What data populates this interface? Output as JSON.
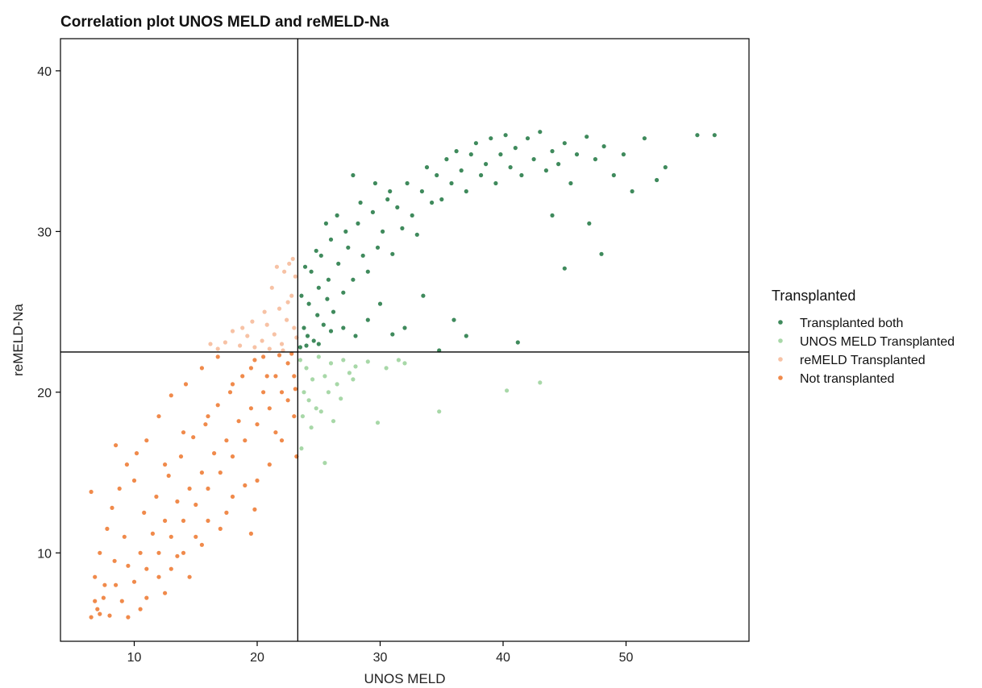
{
  "chart_data": {
    "type": "scatter",
    "title": "Correlation plot UNOS MELD and reMELD-Na",
    "xlabel": "UNOS MELD",
    "ylabel": "reMELD-Na",
    "xlim": [
      4,
      60
    ],
    "ylim": [
      4.5,
      42
    ],
    "x_ticks": [
      10,
      20,
      30,
      40,
      50
    ],
    "y_ticks": [
      10,
      20,
      30,
      40
    ],
    "grid": false,
    "cutoffs": {
      "x": 23.3,
      "y": 22.5
    },
    "legend": {
      "title": "Transplanted",
      "placement": "right",
      "entries": [
        {
          "label": "Transplanted both",
          "color": "#3f8a5c"
        },
        {
          "label": "UNOS MELD Transplanted",
          "color": "#a8d8a8"
        },
        {
          "label": "reMELD Transplanted",
          "color": "#f7c2a5"
        },
        {
          "label": "Not transplanted",
          "color": "#f08a4b"
        }
      ]
    },
    "series": [
      {
        "name": "Transplanted both",
        "color": "#3f8a5c",
        "points": [
          [
            23.5,
            22.8
          ],
          [
            23.8,
            24.0
          ],
          [
            24.2,
            25.5
          ],
          [
            24.6,
            23.2
          ],
          [
            25.0,
            26.5
          ],
          [
            25.4,
            24.2
          ],
          [
            25.8,
            27.0
          ],
          [
            26.2,
            25.0
          ],
          [
            26.6,
            28.0
          ],
          [
            27.0,
            26.2
          ],
          [
            27.4,
            29.0
          ],
          [
            27.8,
            27.0
          ],
          [
            28.2,
            30.5
          ],
          [
            28.6,
            28.5
          ],
          [
            29.0,
            27.5
          ],
          [
            29.4,
            31.2
          ],
          [
            29.8,
            29.0
          ],
          [
            30.2,
            30.0
          ],
          [
            30.6,
            32.0
          ],
          [
            31.0,
            28.6
          ],
          [
            31.4,
            31.5
          ],
          [
            31.8,
            30.2
          ],
          [
            32.2,
            33.0
          ],
          [
            32.6,
            31.0
          ],
          [
            33.0,
            29.8
          ],
          [
            33.4,
            32.5
          ],
          [
            33.8,
            34.0
          ],
          [
            34.2,
            31.8
          ],
          [
            34.6,
            33.5
          ],
          [
            35.0,
            32.0
          ],
          [
            35.4,
            34.5
          ],
          [
            35.8,
            33.0
          ],
          [
            36.2,
            35.0
          ],
          [
            36.6,
            33.8
          ],
          [
            37.0,
            32.5
          ],
          [
            37.4,
            34.8
          ],
          [
            37.8,
            35.5
          ],
          [
            38.2,
            33.5
          ],
          [
            38.6,
            34.2
          ],
          [
            39.0,
            35.8
          ],
          [
            39.4,
            33.0
          ],
          [
            39.8,
            34.8
          ],
          [
            40.2,
            36.0
          ],
          [
            40.6,
            34.0
          ],
          [
            41.0,
            35.2
          ],
          [
            41.5,
            33.5
          ],
          [
            42.0,
            35.8
          ],
          [
            42.5,
            34.5
          ],
          [
            43.0,
            36.2
          ],
          [
            43.5,
            33.8
          ],
          [
            44.0,
            35.0
          ],
          [
            44.5,
            34.2
          ],
          [
            45.0,
            35.5
          ],
          [
            45.5,
            33.0
          ],
          [
            46.0,
            34.8
          ],
          [
            46.8,
            35.9
          ],
          [
            47.5,
            34.5
          ],
          [
            48.2,
            35.3
          ],
          [
            49.0,
            33.5
          ],
          [
            49.8,
            34.8
          ],
          [
            50.5,
            32.5
          ],
          [
            51.5,
            35.8
          ],
          [
            52.5,
            33.2
          ],
          [
            53.2,
            34.0
          ],
          [
            55.8,
            36.0
          ],
          [
            57.2,
            36.0
          ],
          [
            45.0,
            27.7
          ],
          [
            47.0,
            30.5
          ],
          [
            48.0,
            28.6
          ],
          [
            44.0,
            31.0
          ],
          [
            41.2,
            23.1
          ],
          [
            37.0,
            23.5
          ],
          [
            36.0,
            24.5
          ],
          [
            34.8,
            22.6
          ],
          [
            33.5,
            26.0
          ],
          [
            32.0,
            24.0
          ],
          [
            31.0,
            23.6
          ],
          [
            30.0,
            25.5
          ],
          [
            29.0,
            24.5
          ],
          [
            28.0,
            23.5
          ],
          [
            27.0,
            24.0
          ],
          [
            26.0,
            23.8
          ],
          [
            25.0,
            23.0
          ],
          [
            24.0,
            22.9
          ],
          [
            23.6,
            26.0
          ],
          [
            24.4,
            27.5
          ],
          [
            25.2,
            28.5
          ],
          [
            26.0,
            29.5
          ],
          [
            27.2,
            30.0
          ],
          [
            28.4,
            31.8
          ],
          [
            29.6,
            33.0
          ],
          [
            30.8,
            32.5
          ],
          [
            26.5,
            31.0
          ],
          [
            27.8,
            33.5
          ],
          [
            25.6,
            30.5
          ],
          [
            24.8,
            28.8
          ],
          [
            23.9,
            27.8
          ],
          [
            24.1,
            23.5
          ],
          [
            24.9,
            24.8
          ],
          [
            25.7,
            25.8
          ]
        ]
      },
      {
        "name": "UNOS MELD Transplanted",
        "color": "#a8d8a8",
        "points": [
          [
            23.5,
            22.0
          ],
          [
            24.0,
            21.5
          ],
          [
            24.5,
            20.8
          ],
          [
            25.0,
            22.2
          ],
          [
            25.5,
            21.0
          ],
          [
            26.0,
            21.8
          ],
          [
            26.5,
            20.5
          ],
          [
            27.0,
            22.0
          ],
          [
            27.5,
            21.2
          ],
          [
            28.0,
            21.6
          ],
          [
            23.8,
            20.0
          ],
          [
            24.2,
            19.5
          ],
          [
            24.8,
            19.0
          ],
          [
            25.2,
            18.8
          ],
          [
            26.2,
            18.2
          ],
          [
            23.6,
            16.5
          ],
          [
            25.5,
            15.6
          ],
          [
            29.8,
            18.1
          ],
          [
            32.0,
            21.8
          ],
          [
            34.8,
            18.8
          ],
          [
            40.3,
            20.1
          ],
          [
            43.0,
            20.6
          ],
          [
            30.5,
            21.5
          ],
          [
            31.5,
            22.0
          ],
          [
            29.0,
            21.9
          ],
          [
            26.8,
            19.6
          ],
          [
            24.4,
            17.8
          ],
          [
            23.7,
            18.5
          ],
          [
            25.8,
            20.0
          ],
          [
            27.8,
            20.8
          ]
        ]
      },
      {
        "name": "reMELD Transplanted",
        "color": "#f7c2a5",
        "points": [
          [
            22.0,
            23.0
          ],
          [
            22.4,
            24.5
          ],
          [
            22.8,
            26.0
          ],
          [
            21.8,
            25.2
          ],
          [
            22.2,
            27.5
          ],
          [
            22.6,
            28.0
          ],
          [
            23.0,
            24.0
          ],
          [
            21.4,
            23.6
          ],
          [
            20.8,
            24.2
          ],
          [
            21.2,
            26.5
          ],
          [
            20.4,
            23.2
          ],
          [
            19.8,
            22.8
          ],
          [
            19.2,
            23.5
          ],
          [
            18.6,
            22.9
          ],
          [
            18.0,
            23.8
          ],
          [
            17.4,
            23.1
          ],
          [
            16.8,
            22.7
          ],
          [
            16.2,
            23.0
          ],
          [
            22.9,
            28.3
          ],
          [
            23.1,
            27.2
          ],
          [
            21.6,
            27.8
          ],
          [
            22.5,
            25.6
          ],
          [
            20.6,
            25.0
          ],
          [
            19.6,
            24.4
          ],
          [
            18.8,
            24.0
          ],
          [
            22.1,
            22.6
          ],
          [
            21.0,
            22.7
          ],
          [
            23.2,
            23.4
          ]
        ]
      },
      {
        "name": "Not transplanted",
        "color": "#f08a4b",
        "points": [
          [
            6.5,
            6.0
          ],
          [
            7.0,
            6.5
          ],
          [
            7.5,
            7.2
          ],
          [
            8.0,
            6.1
          ],
          [
            8.5,
            8.0
          ],
          [
            9.0,
            7.0
          ],
          [
            9.5,
            9.2
          ],
          [
            10.0,
            8.2
          ],
          [
            10.5,
            10.0
          ],
          [
            11.0,
            9.0
          ],
          [
            11.5,
            11.2
          ],
          [
            12.0,
            10.0
          ],
          [
            12.5,
            12.0
          ],
          [
            13.0,
            11.0
          ],
          [
            13.5,
            13.2
          ],
          [
            14.0,
            12.0
          ],
          [
            14.5,
            14.0
          ],
          [
            15.0,
            13.0
          ],
          [
            15.5,
            15.0
          ],
          [
            16.0,
            14.0
          ],
          [
            16.5,
            16.2
          ],
          [
            17.0,
            15.0
          ],
          [
            17.5,
            17.0
          ],
          [
            18.0,
            16.0
          ],
          [
            18.5,
            18.2
          ],
          [
            19.0,
            17.0
          ],
          [
            19.5,
            19.0
          ],
          [
            20.0,
            18.0
          ],
          [
            20.5,
            20.0
          ],
          [
            21.0,
            19.0
          ],
          [
            21.5,
            21.0
          ],
          [
            22.0,
            20.0
          ],
          [
            22.5,
            21.8
          ],
          [
            23.0,
            21.0
          ],
          [
            6.8,
            8.5
          ],
          [
            7.2,
            10.0
          ],
          [
            7.8,
            11.5
          ],
          [
            8.2,
            12.8
          ],
          [
            8.8,
            14.0
          ],
          [
            9.4,
            15.5
          ],
          [
            10.2,
            16.2
          ],
          [
            11.0,
            17.0
          ],
          [
            12.0,
            18.5
          ],
          [
            13.0,
            19.8
          ],
          [
            14.2,
            20.5
          ],
          [
            15.5,
            21.5
          ],
          [
            16.8,
            22.2
          ],
          [
            6.5,
            13.8
          ],
          [
            8.5,
            16.7
          ],
          [
            10.0,
            14.5
          ],
          [
            12.5,
            15.5
          ],
          [
            14.0,
            17.5
          ],
          [
            16.0,
            18.5
          ],
          [
            18.0,
            20.5
          ],
          [
            19.5,
            21.5
          ],
          [
            20.5,
            22.2
          ],
          [
            12.0,
            8.5
          ],
          [
            14.0,
            10.0
          ],
          [
            16.0,
            12.0
          ],
          [
            18.0,
            13.5
          ],
          [
            19.8,
            12.7
          ],
          [
            19.5,
            11.2
          ],
          [
            21.0,
            15.5
          ],
          [
            22.0,
            17.0
          ],
          [
            23.0,
            18.5
          ],
          [
            23.2,
            16.0
          ],
          [
            20.0,
            14.5
          ],
          [
            17.5,
            12.5
          ],
          [
            15.0,
            11.0
          ],
          [
            13.0,
            9.0
          ],
          [
            11.0,
            7.2
          ],
          [
            9.5,
            6.0
          ],
          [
            10.5,
            6.5
          ],
          [
            12.5,
            7.5
          ],
          [
            14.5,
            8.5
          ],
          [
            13.5,
            9.8
          ],
          [
            15.5,
            10.5
          ],
          [
            17.0,
            11.5
          ],
          [
            19.0,
            14.2
          ],
          [
            21.5,
            17.5
          ],
          [
            22.5,
            19.5
          ],
          [
            6.8,
            7.0
          ],
          [
            7.2,
            6.2
          ],
          [
            7.6,
            8.0
          ],
          [
            8.4,
            9.5
          ],
          [
            9.2,
            11.0
          ],
          [
            10.8,
            12.5
          ],
          [
            11.8,
            13.5
          ],
          [
            12.8,
            14.8
          ],
          [
            13.8,
            16.0
          ],
          [
            14.8,
            17.2
          ],
          [
            15.8,
            18.0
          ],
          [
            16.8,
            19.2
          ],
          [
            17.8,
            20.0
          ],
          [
            18.8,
            21.0
          ],
          [
            19.8,
            22.0
          ],
          [
            20.8,
            21.0
          ],
          [
            21.8,
            22.3
          ],
          [
            22.8,
            22.4
          ],
          [
            23.1,
            20.2
          ]
        ]
      }
    ]
  }
}
